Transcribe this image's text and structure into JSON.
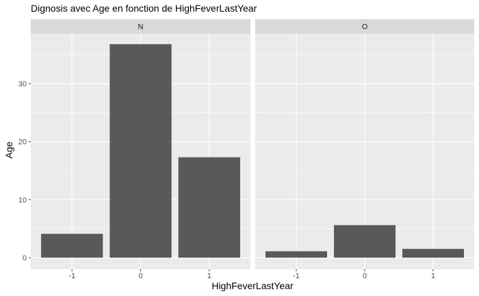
{
  "chart_data": {
    "type": "bar",
    "title": "Dignosis avec Age en fonction de HighFeverLastYear",
    "xlabel": "HighFeverLastYear",
    "ylabel": "Age",
    "ylim": [
      0,
      40
    ],
    "yticks": [
      0,
      10,
      20,
      30
    ],
    "categories": [
      "-1",
      "0",
      "1"
    ],
    "facets": [
      {
        "name": "N",
        "values": [
          4.1,
          36.8,
          17.3
        ]
      },
      {
        "name": "O",
        "values": [
          1.1,
          5.6,
          1.5
        ]
      }
    ],
    "grid": true,
    "legend": "none",
    "colors": {
      "bar": "#595959",
      "panel": "#ebebeb",
      "strip": "#d9d9d9",
      "grid": "#ffffff"
    }
  }
}
